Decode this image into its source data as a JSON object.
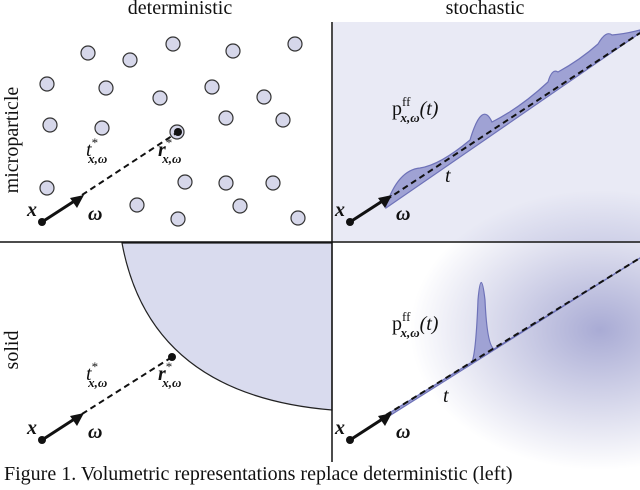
{
  "columns": [
    "deterministic",
    "stochastic"
  ],
  "rows": [
    "microparticle",
    "solid"
  ],
  "labels": {
    "distance": {
      "base": "t",
      "sup": "*",
      "sub": "x,ω"
    },
    "hit_point": {
      "base": "r",
      "sup": "*",
      "sub": "x,ω"
    },
    "density": {
      "base": "p",
      "sup": "ff",
      "sub": "x,ω",
      "arg": "(t)"
    },
    "ray_param": "t",
    "origin": "x",
    "direction": "ω"
  },
  "caption": "Figure 1. Volumetric representations replace deterministic (left)"
}
